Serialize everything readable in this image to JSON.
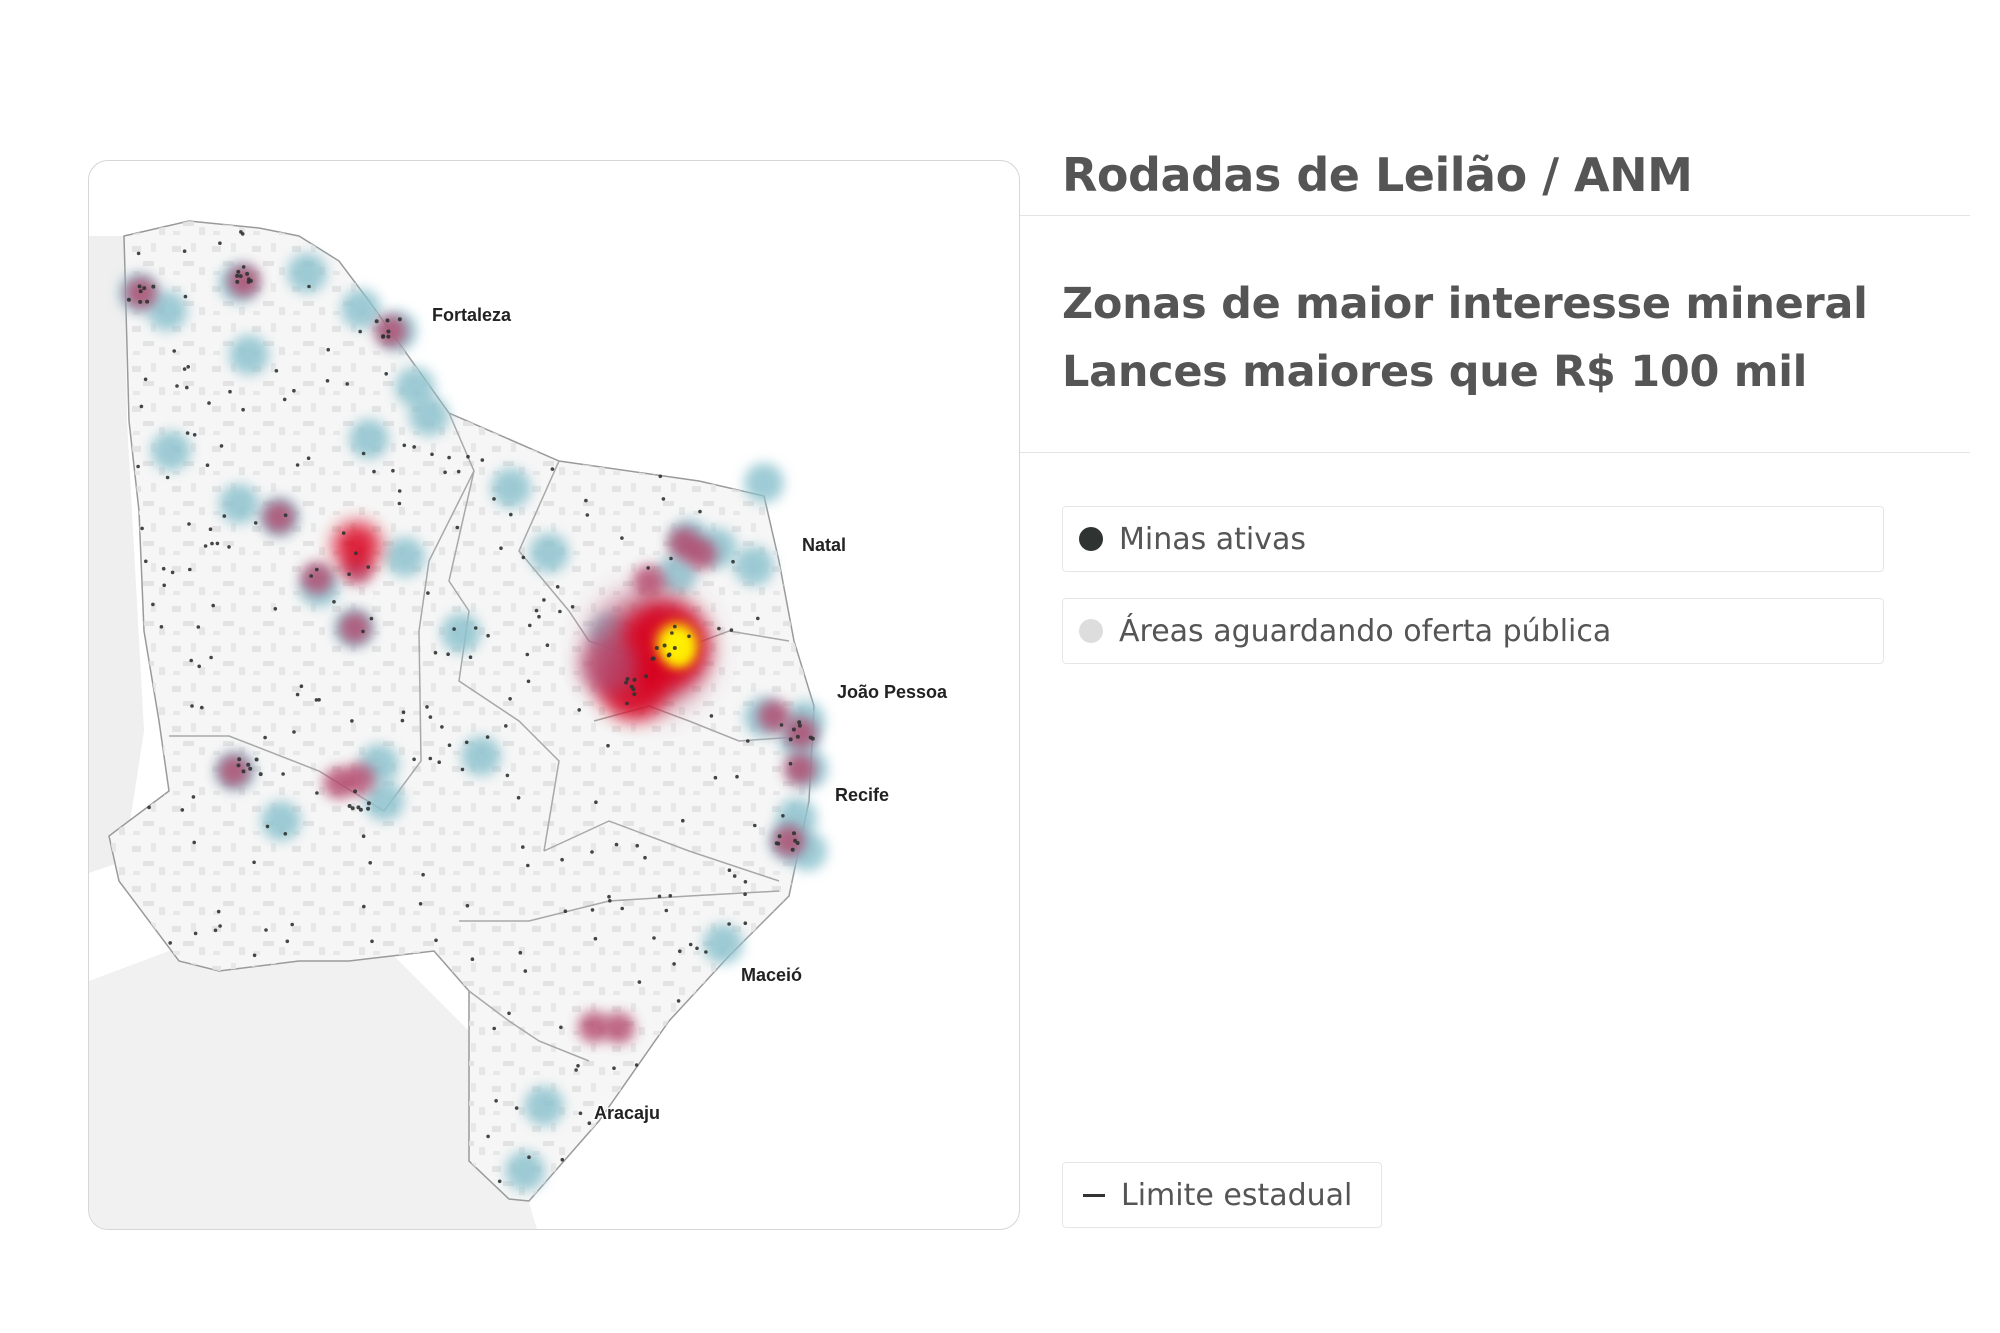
{
  "title": "Rodadas de Leilão / ANM",
  "subtitle": {
    "line1": "Zonas de maior interesse mineral",
    "line2": "Lances maiores que R$ 100 mil"
  },
  "legend": {
    "active_mines": {
      "label": "Minas ativas",
      "color": "#2f3331"
    },
    "pending_areas": {
      "label": "Áreas aguardando oferta pública",
      "color": "#dddddd"
    },
    "state_border": {
      "label": "Limite estadual",
      "color": "#333333"
    }
  },
  "map": {
    "cities": [
      "Fortaleza",
      "Natal",
      "João Pessoa",
      "Recife",
      "Maceió",
      "Aracaju"
    ],
    "heat_colors": {
      "low": "#8ec3cf",
      "mid": "#b2466c",
      "high": "#d9001b",
      "peak": "#ffee00"
    }
  }
}
